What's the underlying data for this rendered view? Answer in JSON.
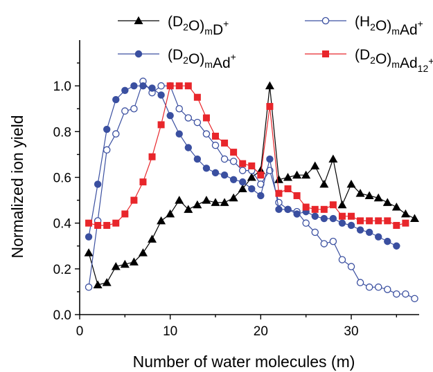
{
  "chart_data": {
    "type": "line",
    "xlabel": "Number of water molecules (m)",
    "ylabel": "Normalized ion yield",
    "xlim": [
      0,
      37.5
    ],
    "ylim": [
      0,
      1.2
    ],
    "xticks": [
      0,
      10,
      20,
      30
    ],
    "yticks": [
      0.0,
      0.2,
      0.4,
      0.6,
      0.8,
      1.0
    ],
    "x_tick_labels": [
      "0",
      "10",
      "20",
      "30"
    ],
    "y_tick_labels": [
      "0.0",
      "0.2",
      "0.4",
      "0.6",
      "0.8",
      "1.0"
    ],
    "grid": false,
    "legend_position": "top",
    "series": [
      {
        "name": "(D₂O)ₘD⁺",
        "name_parts": [
          [
            "(D",
            ""
          ],
          [
            "2",
            "sub"
          ],
          [
            "O)",
            ""
          ],
          [
            "m",
            "sub"
          ],
          [
            "D",
            ""
          ],
          [
            "+",
            "sup"
          ]
        ],
        "color": "#000000",
        "marker": "triangle",
        "x": [
          1,
          2,
          3,
          4,
          5,
          6,
          7,
          8,
          9,
          10,
          11,
          12,
          13,
          14,
          15,
          16,
          17,
          18,
          19,
          20,
          21,
          22,
          23,
          24,
          25,
          26,
          27,
          28,
          29,
          30,
          31,
          32,
          33,
          34,
          35,
          36,
          37
        ],
        "values": [
          0.27,
          0.13,
          0.14,
          0.21,
          0.22,
          0.23,
          0.27,
          0.33,
          0.41,
          0.44,
          0.5,
          0.46,
          0.48,
          0.5,
          0.49,
          0.49,
          0.51,
          0.55,
          0.6,
          0.63,
          1.0,
          0.59,
          0.6,
          0.61,
          0.61,
          0.65,
          0.57,
          0.68,
          0.48,
          0.57,
          0.53,
          0.52,
          0.51,
          0.49,
          0.47,
          0.44,
          0.42
        ]
      },
      {
        "name": "(H₂O)ₘAd⁺",
        "name_parts": [
          [
            "(H",
            ""
          ],
          [
            "2",
            "sub"
          ],
          [
            "O)",
            ""
          ],
          [
            "m",
            "sub"
          ],
          [
            "Ad",
            ""
          ],
          [
            "+",
            "sup"
          ]
        ],
        "color": "#3a4fa0",
        "marker": "open-circle",
        "x": [
          1,
          2,
          3,
          4,
          5,
          6,
          7,
          8,
          9,
          10,
          11,
          12,
          13,
          14,
          15,
          16,
          17,
          18,
          19,
          20,
          21,
          22,
          23,
          24,
          25,
          26,
          27,
          28,
          29,
          30,
          31,
          32,
          33,
          34,
          35,
          36,
          37
        ],
        "values": [
          0.12,
          0.41,
          0.72,
          0.79,
          0.89,
          0.9,
          1.02,
          0.97,
          1.0,
          1.0,
          0.9,
          0.86,
          0.84,
          0.79,
          0.74,
          0.68,
          0.67,
          0.63,
          0.63,
          0.57,
          0.63,
          0.49,
          0.46,
          0.45,
          0.4,
          0.36,
          0.31,
          0.32,
          0.24,
          0.21,
          0.14,
          0.12,
          0.12,
          0.11,
          0.09,
          0.09,
          0.07
        ]
      },
      {
        "name": "(D₂O)ₘAd⁺",
        "name_parts": [
          [
            "(D",
            ""
          ],
          [
            "2",
            "sub"
          ],
          [
            "O)",
            ""
          ],
          [
            "m",
            "sub"
          ],
          [
            "Ad",
            ""
          ],
          [
            "+",
            "sup"
          ]
        ],
        "color": "#3a4fa0",
        "marker": "filled-circle",
        "x": [
          1,
          2,
          3,
          4,
          5,
          6,
          7,
          8,
          9,
          10,
          11,
          12,
          13,
          14,
          15,
          16,
          17,
          18,
          19,
          20,
          21,
          22,
          23,
          24,
          25,
          26,
          27,
          28,
          29,
          30,
          31,
          32,
          33,
          34,
          35
        ],
        "values": [
          0.34,
          0.57,
          0.81,
          0.94,
          0.98,
          1.0,
          1.0,
          0.99,
          0.96,
          0.87,
          0.79,
          0.73,
          0.68,
          0.64,
          0.62,
          0.61,
          0.59,
          0.58,
          0.55,
          0.52,
          0.68,
          0.46,
          0.46,
          0.44,
          0.45,
          0.43,
          0.42,
          0.42,
          0.4,
          0.39,
          0.37,
          0.36,
          0.34,
          0.32,
          0.3
        ]
      },
      {
        "name": "(D₂O)ₘAd₁₂⁺",
        "name_parts": [
          [
            "(D",
            ""
          ],
          [
            "2",
            "sub"
          ],
          [
            "O)",
            ""
          ],
          [
            "m",
            "sub"
          ],
          [
            "Ad",
            ""
          ],
          [
            "12",
            "sub"
          ],
          [
            "+",
            "sup"
          ]
        ],
        "color": "#e8262b",
        "marker": "square",
        "x": [
          1,
          2,
          3,
          4,
          5,
          6,
          7,
          8,
          9,
          10,
          11,
          12,
          13,
          14,
          15,
          16,
          17,
          18,
          19,
          20,
          21,
          22,
          23,
          24,
          25,
          26,
          27,
          28,
          29,
          30,
          31,
          32,
          33,
          34,
          35,
          36
        ],
        "values": [
          0.4,
          0.39,
          0.39,
          0.4,
          0.44,
          0.5,
          0.58,
          0.69,
          0.83,
          1.0,
          1.0,
          1.0,
          0.95,
          0.86,
          0.78,
          0.75,
          0.71,
          0.66,
          0.65,
          0.61,
          0.91,
          0.53,
          0.55,
          0.52,
          0.47,
          0.46,
          0.46,
          0.48,
          0.43,
          0.43,
          0.41,
          0.41,
          0.41,
          0.41,
          0.39,
          0.4
        ]
      }
    ]
  }
}
